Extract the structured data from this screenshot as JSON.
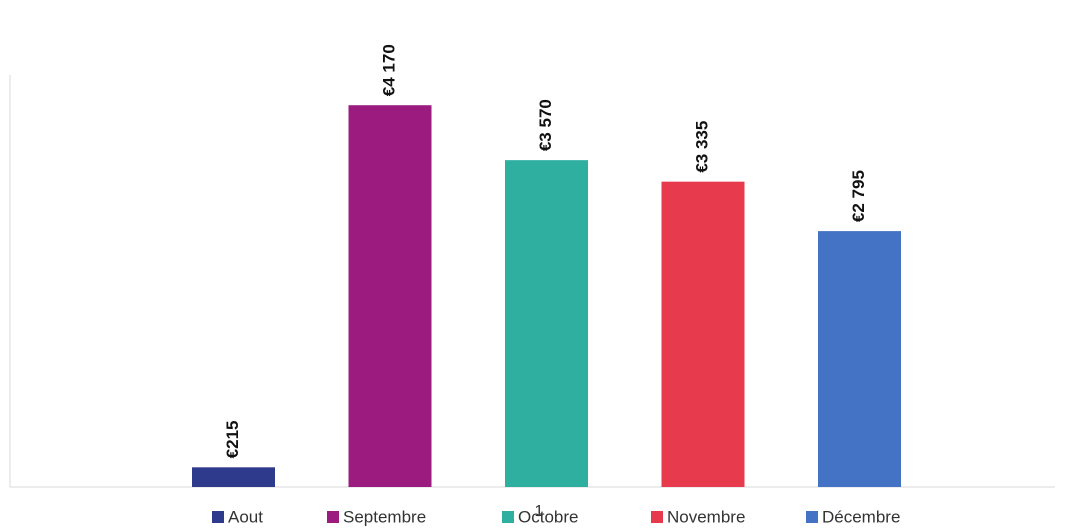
{
  "chart_data": {
    "type": "bar",
    "categories": [
      "1"
    ],
    "ylim": [
      0,
      4500
    ],
    "series": [
      {
        "name": "Aout",
        "color": "#2e3a8c",
        "values": [
          215
        ],
        "value_labels": [
          "€215"
        ]
      },
      {
        "name": "Septembre",
        "color": "#9b1b7e",
        "values": [
          4170
        ],
        "value_labels": [
          "€4 170"
        ]
      },
      {
        "name": "Octobre",
        "color": "#2eaf9f",
        "values": [
          3570
        ],
        "value_labels": [
          "€3 570"
        ]
      },
      {
        "name": "Novembre",
        "color": "#e83a4d",
        "values": [
          3335
        ],
        "value_labels": [
          "€3 335"
        ]
      },
      {
        "name": "Décembre",
        "color": "#4472c4",
        "values": [
          2795
        ],
        "value_labels": [
          "€2 795"
        ]
      }
    ],
    "legend": "bottom"
  }
}
